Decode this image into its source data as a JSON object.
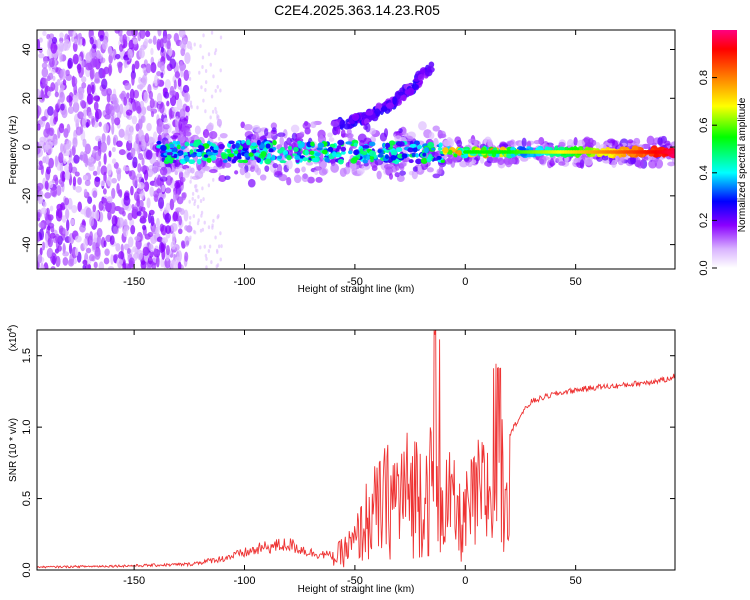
{
  "title": "C2E4.2025.363.14.23.R05",
  "chart_data": [
    {
      "type": "heatmap",
      "name": "spectrogram",
      "xlabel": "Height of straight line (km)",
      "ylabel": "Frequency (Hz)",
      "xlim": [
        -194,
        95
      ],
      "ylim": [
        -50,
        48
      ],
      "xticks": [
        -150,
        -100,
        -50,
        0,
        50
      ],
      "yticks": [
        -40,
        -20,
        0,
        20,
        40
      ],
      "colorbar": {
        "label": "Normalized spectral amplitude",
        "range": [
          0,
          1
        ],
        "ticks": [
          "0.0",
          "0.2",
          "0.4",
          "0.6",
          "0.8"
        ],
        "colors": [
          "#ffffff",
          "#d9b3ff",
          "#8a00ff",
          "#0000ff",
          "#00ffff",
          "#00ff00",
          "#ffff00",
          "#ff8000",
          "#ff0000",
          "#ff0080"
        ]
      },
      "features": {
        "main_line_frequency_hz": -2,
        "upper_branch_x_km": [
          -60,
          -45,
          -35,
          -25,
          -15
        ],
        "upper_branch_freq_hz": [
          8,
          12,
          17,
          24,
          33
        ],
        "noise_region_x_km": [
          -194,
          -125
        ]
      }
    },
    {
      "type": "line",
      "name": "snr",
      "xlabel": "Height of straight line (km)",
      "ylabel": "SNR (10 * v/v)",
      "multiplier": "(x10",
      "multiplier_exp": "4",
      "xlim": [
        -194,
        95
      ],
      "ylim": [
        0,
        1.68
      ],
      "xticks": [
        -150,
        -100,
        -50,
        0,
        50
      ],
      "yticks": [
        "0.0",
        "0.5",
        "1.0",
        "1.5"
      ],
      "color": "#ee3333",
      "envelope": {
        "x": [
          -194,
          -150,
          -125,
          -110,
          -100,
          -90,
          -80,
          -70,
          -60,
          -50,
          -45,
          -40,
          -35,
          -30,
          -25,
          -20,
          -15,
          -12,
          -8,
          -5,
          -2,
          2,
          5,
          10,
          15,
          20,
          25,
          30,
          40,
          50,
          60,
          70,
          80,
          90,
          95
        ],
        "y": [
          0.02,
          0.03,
          0.04,
          0.08,
          0.12,
          0.16,
          0.18,
          0.12,
          0.1,
          0.25,
          0.45,
          0.55,
          0.65,
          0.7,
          0.72,
          0.75,
          0.75,
          0.72,
          0.62,
          0.55,
          0.42,
          0.55,
          0.65,
          0.72,
          0.8,
          0.95,
          1.08,
          1.18,
          1.23,
          1.26,
          1.28,
          1.29,
          1.31,
          1.33,
          1.36
        ]
      }
    }
  ]
}
